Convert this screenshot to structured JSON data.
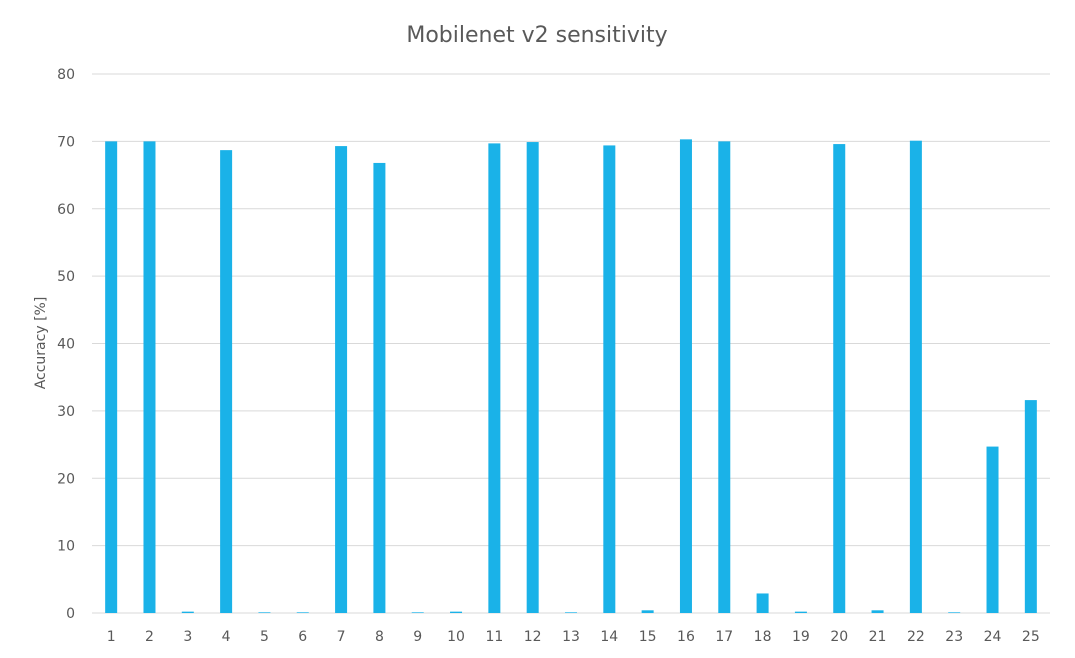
{
  "chart_data": {
    "type": "bar",
    "title": "Mobilenet v2 sensitivity",
    "xlabel": "",
    "ylabel": "Accuracy [%]",
    "ylim": [
      0,
      80
    ],
    "yticks": [
      0,
      10,
      20,
      30,
      40,
      50,
      60,
      70,
      80
    ],
    "grid": true,
    "legend": "none",
    "categories": [
      "1",
      "2",
      "3",
      "4",
      "5",
      "6",
      "7",
      "8",
      "9",
      "10",
      "11",
      "12",
      "13",
      "14",
      "15",
      "16",
      "17",
      "18",
      "19",
      "20",
      "21",
      "22",
      "23",
      "24",
      "25"
    ],
    "values": [
      70.0,
      70.0,
      0.2,
      68.7,
      0.1,
      0.1,
      69.3,
      66.8,
      0.1,
      0.2,
      69.7,
      69.9,
      0.1,
      69.4,
      0.4,
      70.3,
      70.0,
      2.9,
      0.2,
      69.6,
      0.4,
      70.1,
      0.1,
      24.7,
      31.6
    ],
    "colors": {
      "bar": "#1ab2e8",
      "grid": "#d9d9d9",
      "text": "#595959"
    }
  }
}
